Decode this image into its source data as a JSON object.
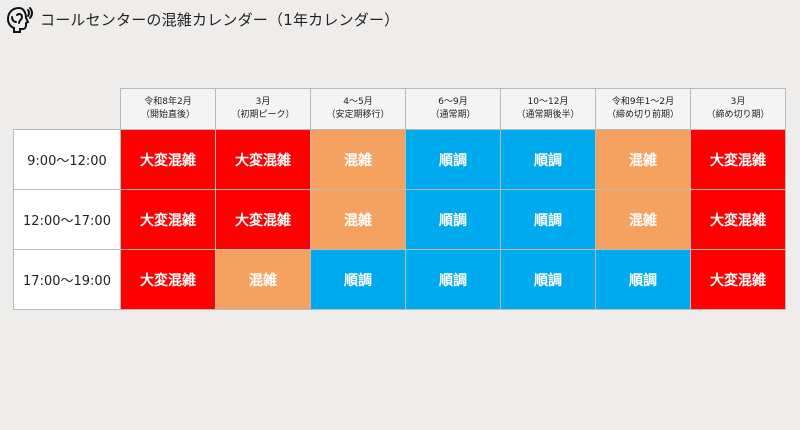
{
  "header": {
    "title": "コールセンターの混雑カレンダー（1年カレンダー）",
    "logo_icon": "head-phone-icon"
  },
  "colors": {
    "大変混雑": "#ff0000",
    "混雑": "#f5a15f",
    "順調": "#00aaee"
  },
  "columns": [
    {
      "line1": "令和8年2月",
      "line2": "（開始直後）"
    },
    {
      "line1": "3月",
      "line2": "（初期ピーク）"
    },
    {
      "line1": "4～5月",
      "line2": "（安定期移行）"
    },
    {
      "line1": "6～9月",
      "line2": "（通常期）"
    },
    {
      "line1": "10～12月",
      "line2": "（通常期後半）"
    },
    {
      "line1": "令和9年1～2月",
      "line2": "（締め切り前期）"
    },
    {
      "line1": "3月",
      "line2": "（締め切り期）"
    }
  ],
  "rows": [
    {
      "time": "9:00～12:00",
      "cells": [
        "大変混雑",
        "大変混雑",
        "混雑",
        "順調",
        "順調",
        "混雑",
        "大変混雑"
      ]
    },
    {
      "time": "12:00～17:00",
      "cells": [
        "大変混雑",
        "大変混雑",
        "混雑",
        "順調",
        "順調",
        "混雑",
        "大変混雑"
      ]
    },
    {
      "time": "17:00～19:00",
      "cells": [
        "大変混雑",
        "混雑",
        "順調",
        "順調",
        "順調",
        "順調",
        "大変混雑"
      ]
    }
  ]
}
